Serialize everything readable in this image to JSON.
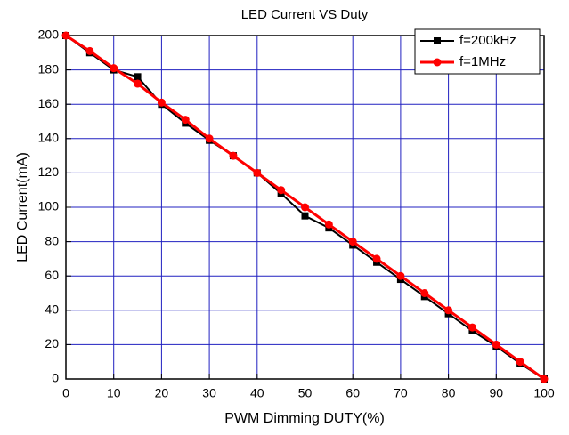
{
  "chart_data": {
    "type": "line",
    "title": "LED Current VS Duty",
    "x_label": "PWM Dimming DUTY(%)",
    "y_label": "LED Current(mA)",
    "x": [
      0,
      5,
      10,
      15,
      20,
      25,
      30,
      35,
      40,
      45,
      50,
      55,
      60,
      65,
      70,
      75,
      80,
      85,
      90,
      95,
      100
    ],
    "series": [
      {
        "name": "f=200kHz",
        "color": "#000000",
        "marker": "square",
        "values": [
          200,
          190,
          180,
          176,
          160,
          149,
          139,
          130,
          120,
          108,
          95,
          88,
          78,
          68,
          58,
          48,
          38,
          28,
          19,
          9,
          0
        ]
      },
      {
        "name": "f=1MHz",
        "color": "#ff0000",
        "marker": "circle",
        "values": [
          200,
          191,
          181,
          172,
          161,
          151,
          140,
          130,
          120,
          110,
          100,
          90,
          80,
          70,
          60,
          50,
          40,
          30,
          20,
          10,
          0
        ]
      }
    ],
    "xlim": [
      0,
      100
    ],
    "xticks": [
      0,
      10,
      20,
      30,
      40,
      50,
      60,
      70,
      80,
      90,
      100
    ],
    "ylim": [
      0,
      200
    ],
    "yticks": [
      0,
      20,
      40,
      60,
      80,
      100,
      120,
      140,
      160,
      180,
      200
    ],
    "grid": true,
    "legend": "upper right"
  }
}
